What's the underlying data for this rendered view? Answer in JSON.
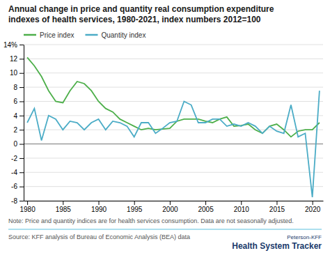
{
  "chart_data": {
    "type": "line",
    "title": "Annual change in price and quantity real consumption expenditure\nindexes of health services, 1980-2021, index numbers 2012=100",
    "annotations": [
      "Note: Price and quantity indices are for health services consumption. Data are not seasonally adjusted.",
      "Source: KFF analysis of Bureau of Economic Analysis (BEA) data",
      "Peterson-KFF",
      "Health System Tracker"
    ],
    "x": [
      1980,
      1981,
      1982,
      1983,
      1984,
      1985,
      1986,
      1987,
      1988,
      1989,
      1990,
      1991,
      1992,
      1993,
      1994,
      1995,
      1996,
      1997,
      1998,
      1999,
      2000,
      2001,
      2002,
      2003,
      2004,
      2005,
      2006,
      2007,
      2008,
      2009,
      2010,
      2011,
      2012,
      2013,
      2014,
      2015,
      2016,
      2017,
      2018,
      2019,
      2020,
      2021
    ],
    "series": [
      {
        "name": "Price index",
        "color": "#4daf4a",
        "values": [
          12.2,
          11.0,
          9.5,
          7.5,
          6.0,
          5.8,
          7.5,
          8.8,
          8.5,
          7.5,
          6.0,
          5.0,
          4.5,
          3.5,
          3.0,
          2.5,
          2.0,
          2.2,
          2.0,
          2.1,
          2.2,
          3.2,
          3.5,
          3.5,
          3.5,
          3.2,
          3.0,
          3.5,
          3.8,
          2.5,
          2.6,
          2.8,
          2.0,
          1.5,
          2.5,
          2.8,
          2.0,
          1.0,
          1.8,
          2.0,
          2.0,
          3.0
        ]
      },
      {
        "name": "Quantity index",
        "color": "#4bacc6",
        "values": [
          3.0,
          5.0,
          0.5,
          4.0,
          3.5,
          2.0,
          3.2,
          3.0,
          2.0,
          3.0,
          3.5,
          2.0,
          3.2,
          3.0,
          2.5,
          1.0,
          3.0,
          3.0,
          1.5,
          2.2,
          3.0,
          3.2,
          6.0,
          5.5,
          3.0,
          3.0,
          3.5,
          3.5,
          2.5,
          2.8,
          2.5,
          3.0,
          2.5,
          1.5,
          2.5,
          1.8,
          1.5,
          5.5,
          1.0,
          1.5,
          -7.5,
          7.5
        ]
      }
    ],
    "xlim": [
      1979.5,
      2021.5
    ],
    "xticks": [
      1980,
      1985,
      1990,
      1995,
      2000,
      2005,
      2010,
      2015,
      2020
    ],
    "ylim": [
      -8,
      14
    ],
    "yticks": [
      -8,
      -6,
      -4,
      -2,
      0,
      2,
      4,
      6,
      8,
      10,
      12,
      {
        "value": 14,
        "label": "14%"
      }
    ],
    "grid": "y",
    "legend": "top left"
  }
}
